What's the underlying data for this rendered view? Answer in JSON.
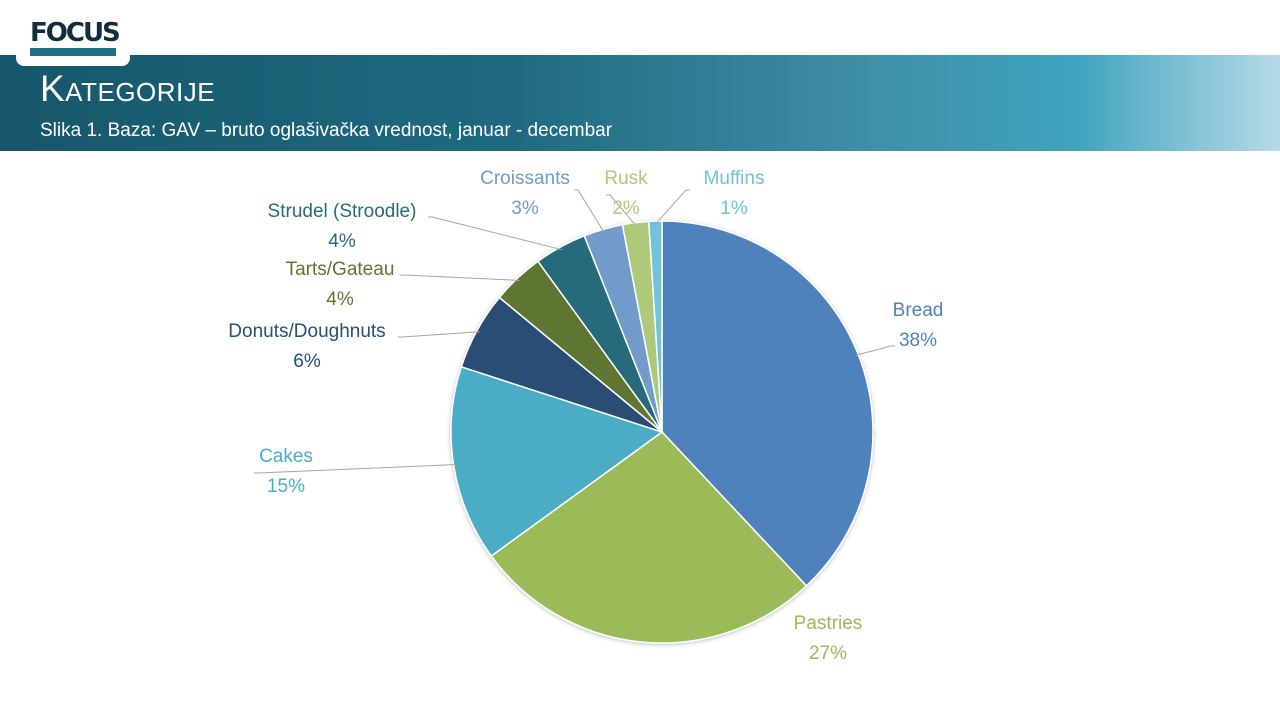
{
  "logo": {
    "text": "FOCUS"
  },
  "header": {
    "title": "Kategorije",
    "subtitle": "Slika 1. Baza: GAV – bruto oglašivačka vrednost, januar - decembar"
  },
  "chart_data": {
    "type": "pie",
    "start_angle_deg": 0,
    "direction": "clockwise",
    "legend": "none",
    "slices": [
      {
        "name": "Bread",
        "value": 38,
        "label": "38%",
        "color": "#4f81bd"
      },
      {
        "name": "Pastries",
        "value": 27,
        "label": "27%",
        "color": "#9bbb59"
      },
      {
        "name": "Cakes",
        "value": 15,
        "label": "15%",
        "color": "#4bacc6"
      },
      {
        "name": "Donuts/Doughnuts",
        "value": 6,
        "label": "6%",
        "color": "#2c4d75"
      },
      {
        "name": "Tarts/Gateau",
        "value": 4,
        "label": "4%",
        "color": "#5f7530"
      },
      {
        "name": "Strudel (Stroodle)",
        "value": 4,
        "label": "4%",
        "color": "#276a7c"
      },
      {
        "name": "Croissants",
        "value": 3,
        "label": "3%",
        "color": "#729aca"
      },
      {
        "name": "Rusk",
        "value": 2,
        "label": "2%",
        "color": "#afc97a"
      },
      {
        "name": "Muffins",
        "value": 1,
        "label": "1%",
        "color": "#6fc3d8"
      }
    ]
  }
}
